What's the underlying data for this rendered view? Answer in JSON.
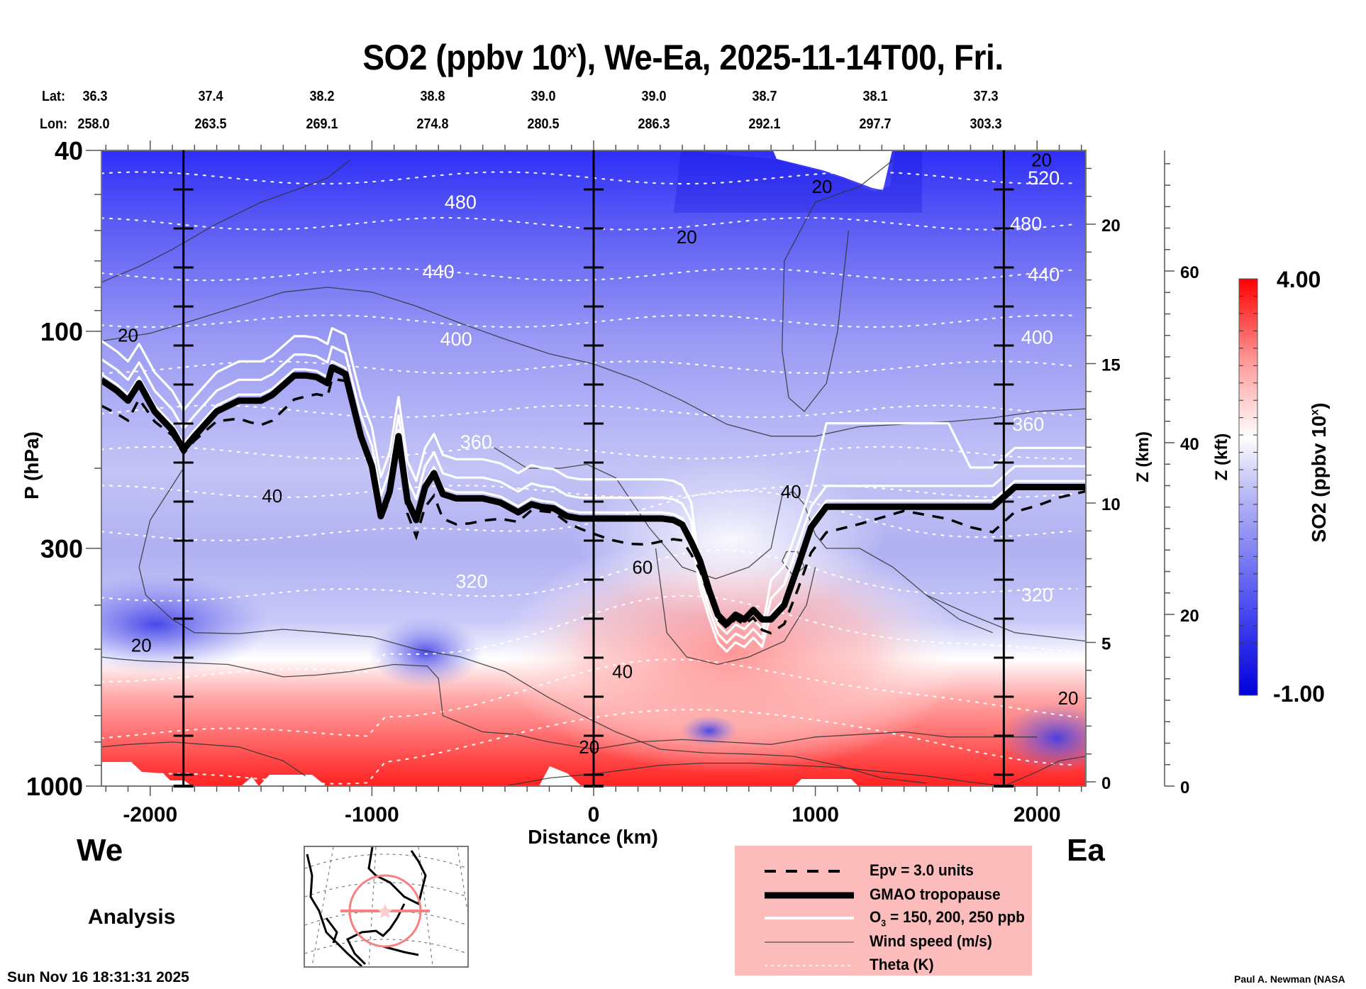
{
  "title": {
    "main": "SO2 (ppbv 10",
    "sup": "x",
    "rest": "), We-Ea, 2025-11-14T00, Fri."
  },
  "latlon": {
    "lat_label": "Lat:",
    "lon_label": "Lon:",
    "lat": [
      "36.3",
      "37.4",
      "38.2",
      "38.8",
      "39.0",
      "39.0",
      "38.7",
      "38.1",
      "37.3"
    ],
    "lon": [
      "258.0",
      "263.5",
      "269.1",
      "274.8",
      "280.5",
      "286.3",
      "292.1",
      "297.7",
      "303.3"
    ]
  },
  "direction": {
    "west": "We",
    "east": "Ea"
  },
  "run_type": "Analysis",
  "timestamp": "Sun Nov 16 18:31:31 2025",
  "credit": "Paul A. Newman (NASA",
  "legend": {
    "items": [
      {
        "style": "dashed",
        "label": "Epv = 3.0 units"
      },
      {
        "style": "thick",
        "label": "GMAO tropopause"
      },
      {
        "style": "white",
        "label_main": "O",
        "label_sub": "3",
        "label_rest": " = 150, 200, 250 ppb"
      },
      {
        "style": "thin",
        "label": "Wind speed (m/s)"
      },
      {
        "style": "dotted",
        "label": "Theta (K)"
      }
    ]
  },
  "colors": {
    "legend_bg": "#fdbcbc",
    "max_red": "#ff0000",
    "min_blue": "#0000e0",
    "map_circle": "#f88080"
  },
  "chart_data": {
    "type": "heatmap",
    "title": "SO2 (ppbv 10^x), We-Ea, 2025-11-14T00, Fri.",
    "xlabel": "Distance (km)",
    "ylabel": "P (hPa)",
    "y2label": "Z (km)",
    "y3label": "Z (kft)",
    "colorbar_label": "SO2 (ppbv 10^x)",
    "xlim": [
      -2220,
      2220
    ],
    "ylim": [
      1000,
      40
    ],
    "yscale": "log",
    "x_ticks": [
      -2000,
      -1000,
      0,
      1000,
      2000
    ],
    "x_tick_labels": [
      "-2000",
      "-1000",
      "0",
      "1000",
      "2000"
    ],
    "y_ticks": [
      40,
      100,
      300,
      1000
    ],
    "y_tick_labels": [
      "40",
      "100",
      "300",
      "1000"
    ],
    "z_km_ticks": [
      0,
      5,
      10,
      15,
      20
    ],
    "z_km_tick_labels": [
      "0",
      "5",
      "10",
      "15",
      "20"
    ],
    "z_kft_ticks": [
      0,
      20,
      40,
      60
    ],
    "z_kft_tick_labels": [
      "0",
      "20",
      "40",
      "60"
    ],
    "colorbar": {
      "min": -1.0,
      "max": 4.0,
      "min_label": "-1.00",
      "max_label": "4.00",
      "levels": 24
    },
    "vertical_markers_km": [
      -1850,
      0,
      1850
    ],
    "theta_labels": [
      {
        "x": -600,
        "p": 52,
        "text": "480"
      },
      {
        "x": -700,
        "p": 74,
        "text": "440"
      },
      {
        "x": -620,
        "p": 104,
        "text": "400"
      },
      {
        "x": -530,
        "p": 175,
        "text": "360"
      },
      {
        "x": -550,
        "p": 355,
        "text": "320"
      },
      {
        "x": 2030,
        "p": 46,
        "text": "520"
      },
      {
        "x": 1950,
        "p": 58,
        "text": "480"
      },
      {
        "x": 2030,
        "p": 75,
        "text": "440"
      },
      {
        "x": 2000,
        "p": 103,
        "text": "400"
      },
      {
        "x": 1960,
        "p": 160,
        "text": "360"
      },
      {
        "x": 2000,
        "p": 380,
        "text": "320"
      }
    ],
    "wind_labels": [
      {
        "x": -2100,
        "p": 102,
        "text": "20"
      },
      {
        "x": -1450,
        "p": 230,
        "text": "40"
      },
      {
        "x": -2040,
        "p": 490,
        "text": "20"
      },
      {
        "x": 420,
        "p": 62,
        "text": "20"
      },
      {
        "x": 1030,
        "p": 48,
        "text": "20"
      },
      {
        "x": 890,
        "p": 225,
        "text": "40"
      },
      {
        "x": 220,
        "p": 330,
        "text": "60"
      },
      {
        "x": 130,
        "p": 560,
        "text": "40"
      },
      {
        "x": -20,
        "p": 820,
        "text": "20"
      },
      {
        "x": 2140,
        "p": 640,
        "text": "20"
      },
      {
        "x": 2020,
        "p": 42,
        "text": "20"
      }
    ],
    "tropopause_hpa": {
      "x": [
        -2220,
        -2150,
        -2100,
        -2050,
        -1980,
        -1900,
        -1850,
        -1800,
        -1700,
        -1600,
        -1550,
        -1500,
        -1450,
        -1350,
        -1300,
        -1250,
        -1200,
        -1180,
        -1120,
        -1050,
        -1000,
        -960,
        -920,
        -880,
        -840,
        -800,
        -760,
        -720,
        -680,
        -620,
        -560,
        -500,
        -420,
        -340,
        -280,
        -240,
        -180,
        -120,
        -60,
        0,
        80,
        160,
        220,
        270,
        310,
        360,
        400,
        440,
        480,
        520,
        560,
        600,
        640,
        680,
        720,
        760,
        800,
        860,
        920,
        980,
        1050,
        1200,
        1400,
        1600,
        1700,
        1800,
        1900,
        2000,
        2100,
        2220
      ],
      "p": [
        128,
        135,
        142,
        130,
        150,
        165,
        182,
        170,
        150,
        142,
        142,
        142,
        138,
        125,
        125,
        126,
        130,
        120,
        124,
        170,
        198,
        255,
        225,
        170,
        235,
        260,
        220,
        205,
        228,
        233,
        233,
        233,
        238,
        250,
        240,
        243,
        245,
        255,
        258,
        258,
        258,
        258,
        258,
        258,
        258,
        260,
        266,
        290,
        320,
        370,
        420,
        440,
        420,
        430,
        410,
        430,
        430,
        400,
        330,
        270,
        243,
        243,
        243,
        243,
        243,
        243,
        220,
        220,
        220,
        220
      ]
    },
    "o3_contours_ppb": [
      150,
      200,
      250
    ],
    "epv_contour_units": 3.0
  }
}
